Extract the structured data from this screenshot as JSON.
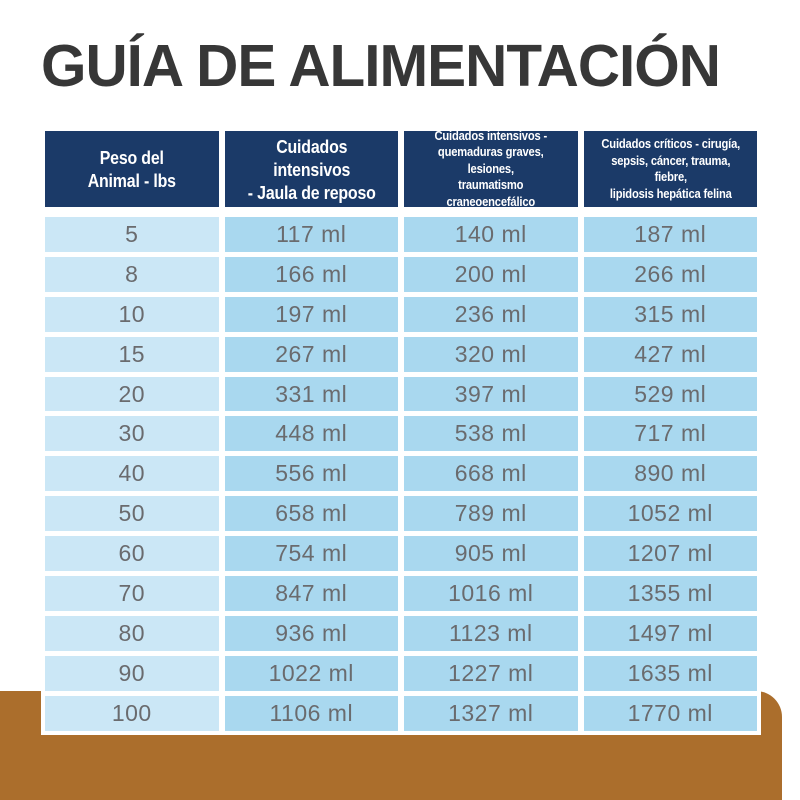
{
  "title": "GUÍA DE ALIMENTACIÓN",
  "colors": {
    "header_bg": "#1b3a68",
    "header_text": "#ffffff",
    "col1_bg": "#cbe7f6",
    "cell_bg": "#a9d8ef",
    "text_gray": "#6a6b6e",
    "title_color": "#373737",
    "brown": "#ab6e2c",
    "page_bg": "#ffffff"
  },
  "table": {
    "headers": [
      {
        "label": "Peso del\nAnimal - lbs"
      },
      {
        "label": "Cuidados intensivos\n- Jaula de reposo"
      },
      {
        "label": "Cuidados intensivos -\nquemaduras graves, lesiones,\ntraumatismo craneoencefálico"
      },
      {
        "label": "Cuidados críticos - cirugía,\nsepsis, cáncer, trauma, fiebre,\nlipidosis hepática felina"
      }
    ],
    "unit": "ml",
    "rows": [
      {
        "weight": "5",
        "values": [
          "117 ml",
          "140 ml",
          "187 ml"
        ]
      },
      {
        "weight": "8",
        "values": [
          "166 ml",
          "200 ml",
          "266 ml"
        ]
      },
      {
        "weight": "10",
        "values": [
          "197 ml",
          "236 ml",
          "315 ml"
        ]
      },
      {
        "weight": "15",
        "values": [
          "267 ml",
          "320 ml",
          "427 ml"
        ]
      },
      {
        "weight": "20",
        "values": [
          "331 ml",
          "397 ml",
          "529 ml"
        ]
      },
      {
        "weight": "30",
        "values": [
          "448 ml",
          "538 ml",
          "717 ml"
        ]
      },
      {
        "weight": "40",
        "values": [
          "556 ml",
          "668 ml",
          "890 ml"
        ]
      },
      {
        "weight": "50",
        "values": [
          "658 ml",
          "789 ml",
          "1052 ml"
        ]
      },
      {
        "weight": "60",
        "values": [
          "754 ml",
          "905 ml",
          "1207 ml"
        ]
      },
      {
        "weight": "70",
        "values": [
          "847 ml",
          "1016 ml",
          "1355 ml"
        ]
      },
      {
        "weight": "80",
        "values": [
          "936 ml",
          "1123 ml",
          "1497 ml"
        ]
      },
      {
        "weight": "90",
        "values": [
          "1022 ml",
          "1227 ml",
          "1635 ml"
        ]
      },
      {
        "weight": "100",
        "values": [
          "1106 ml",
          "1327 ml",
          "1770 ml"
        ]
      }
    ]
  }
}
